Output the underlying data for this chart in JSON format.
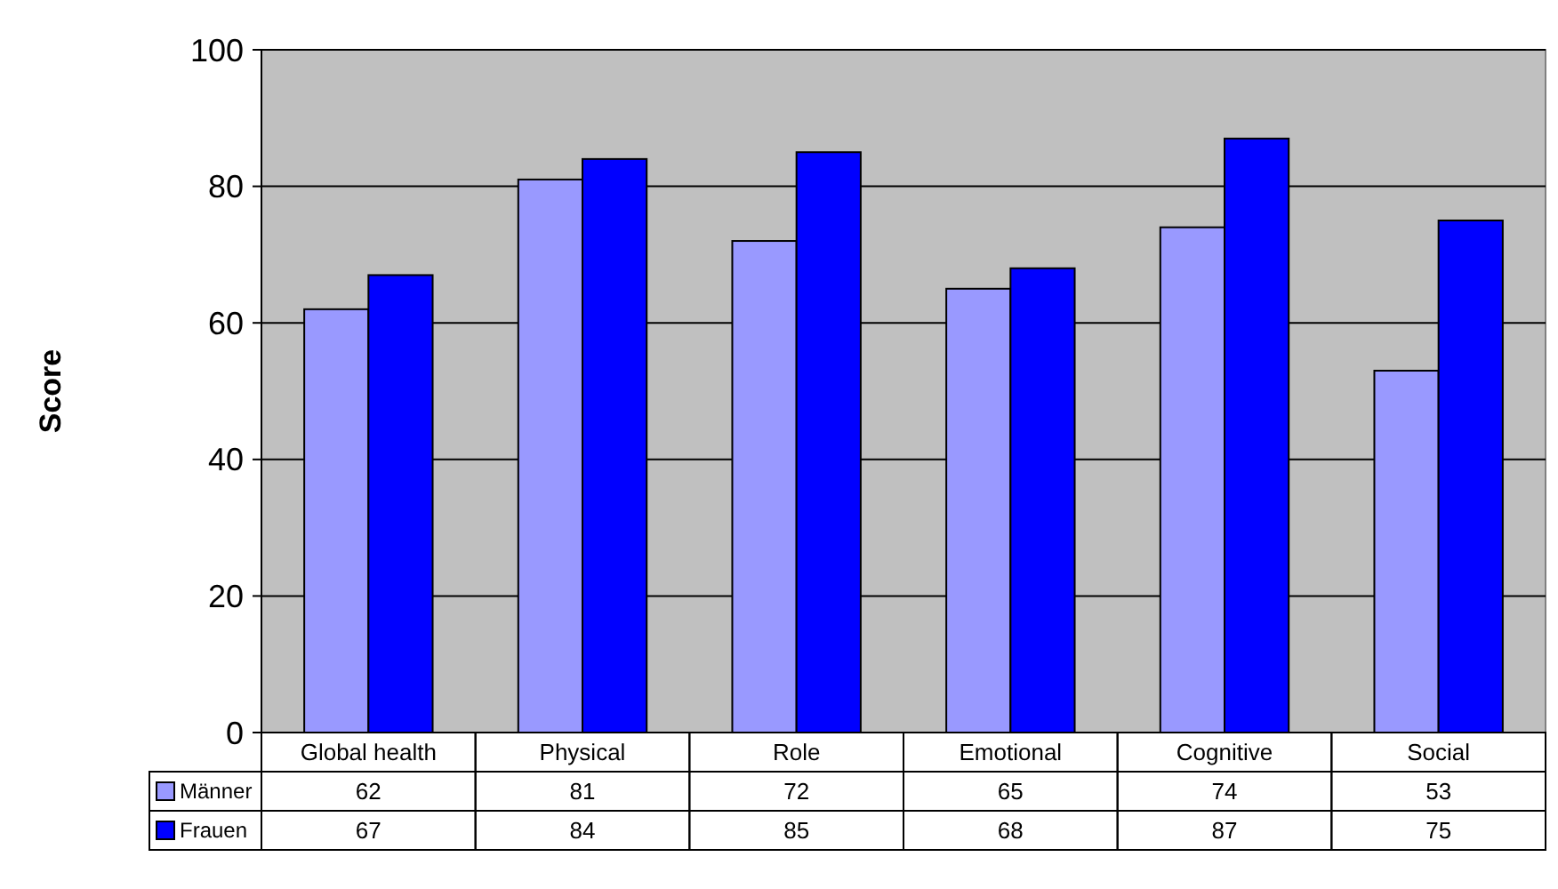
{
  "chart_data": {
    "type": "bar",
    "ylabel": "Score",
    "categories": [
      "Global health",
      "Physical",
      "Role",
      "Emotional",
      "Cognitive",
      "Social"
    ],
    "series": [
      {
        "name": "Männer",
        "color": "#9999ff",
        "values": [
          62,
          81,
          72,
          65,
          74,
          53
        ]
      },
      {
        "name": "Frauen",
        "color": "#0000ff",
        "values": [
          67,
          84,
          85,
          68,
          87,
          75
        ]
      }
    ],
    "ylim": [
      0,
      100
    ],
    "yticks": [
      0,
      20,
      40,
      60,
      80,
      100
    ],
    "grid": "y",
    "data_labels": true,
    "legend": "bottom left"
  }
}
